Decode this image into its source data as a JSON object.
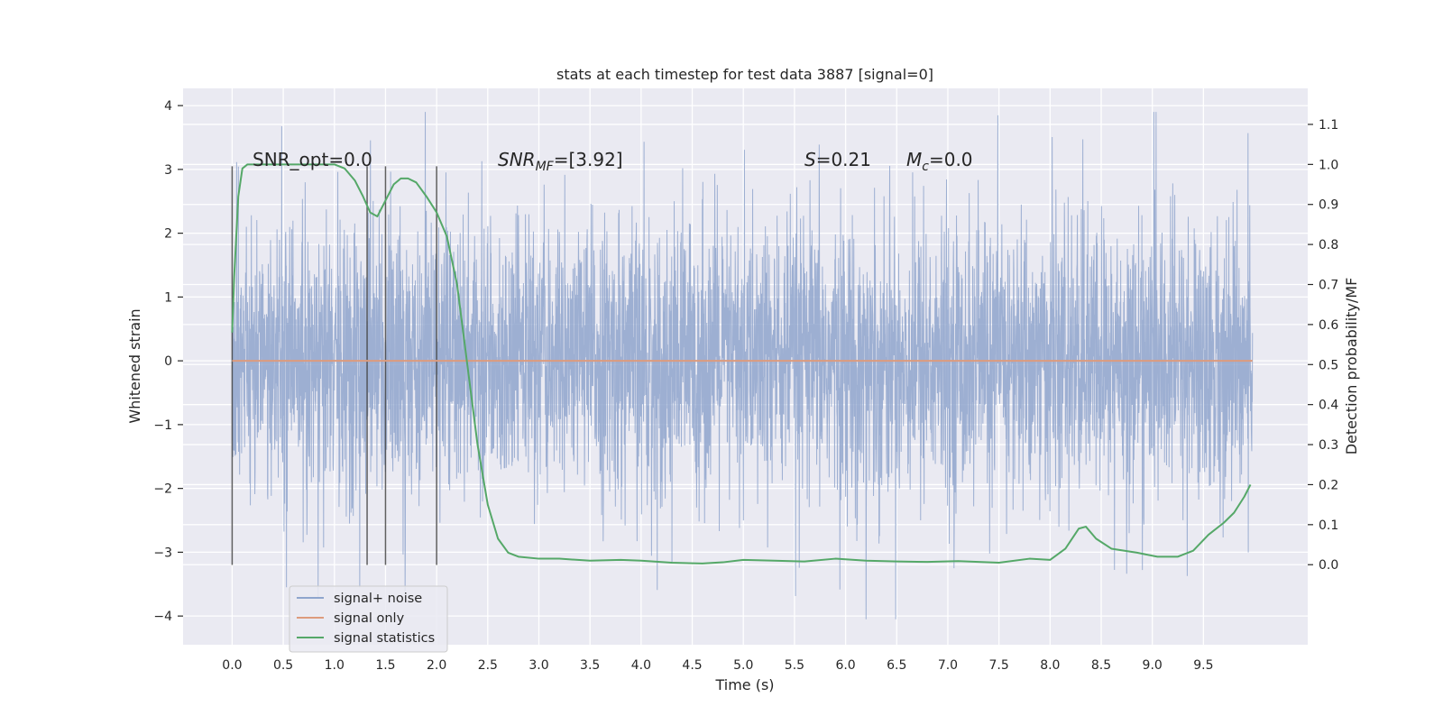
{
  "chart_data": {
    "type": "line",
    "title": "stats at each timestep for test data 3887 [signal=0]",
    "xlabel": "Time (s)",
    "ylabel_left": "Whitened strain",
    "ylabel_right": "Detection probability/MF",
    "xlim": [
      -0.48,
      10.52
    ],
    "ylim_left": [
      -4.45,
      4.27
    ],
    "ylim_right": [
      -0.2,
      1.19
    ],
    "x_ticks": [
      "0.0",
      "0.5",
      "1.0",
      "1.5",
      "2.0",
      "2.5",
      "3.0",
      "3.5",
      "4.0",
      "4.5",
      "5.0",
      "5.5",
      "6.0",
      "6.5",
      "7.0",
      "7.5",
      "8.0",
      "8.5",
      "9.0",
      "9.5"
    ],
    "y_ticks_left": [
      "−4",
      "−3",
      "−2",
      "−1",
      "0",
      "1",
      "2",
      "3",
      "4"
    ],
    "y_ticks_right": [
      "0.0",
      "0.1",
      "0.2",
      "0.3",
      "0.4",
      "0.5",
      "0.6",
      "0.7",
      "0.8",
      "0.9",
      "1.0",
      "1.1"
    ],
    "grid": true,
    "legend_position": "lower-left",
    "annotations": {
      "snr_opt": "SNR_opt=0.0",
      "snr_mf_main": "SNR",
      "snr_mf_sub": "MF",
      "snr_mf_value": "=[3.92]",
      "s_symbol": "S",
      "s_value": "=0.21",
      "mc_symbol": "M",
      "mc_sub": "c",
      "mc_value": "=0.0"
    },
    "vertical_markers_x": [
      0.0,
      1.32,
      1.5,
      2.0
    ],
    "series": [
      {
        "name": "signal+ noise",
        "axis": "left",
        "color": "#8fa5cd",
        "kind": "noise",
        "t_range": [
          0.0,
          9.98
        ],
        "typical_amplitude": 1.2,
        "peak_positive_approx": 3.9,
        "peak_negative_approx": -4.05
      },
      {
        "name": "signal only",
        "axis": "left",
        "color": "#dd9b7d",
        "x": [
          0.0,
          9.98
        ],
        "y": [
          0.0,
          0.0
        ]
      },
      {
        "name": "signal statistics",
        "axis": "right",
        "color": "#55a868",
        "x": [
          0.0,
          0.02,
          0.06,
          0.1,
          0.15,
          0.2,
          0.3,
          0.5,
          0.8,
          1.0,
          1.1,
          1.2,
          1.28,
          1.35,
          1.42,
          1.5,
          1.58,
          1.65,
          1.72,
          1.8,
          1.9,
          2.0,
          2.1,
          2.2,
          2.3,
          2.4,
          2.5,
          2.6,
          2.7,
          2.8,
          3.0,
          3.2,
          3.5,
          3.8,
          4.0,
          4.3,
          4.6,
          4.8,
          5.0,
          5.3,
          5.6,
          5.9,
          6.2,
          6.5,
          6.8,
          7.1,
          7.5,
          7.8,
          8.0,
          8.15,
          8.28,
          8.35,
          8.45,
          8.6,
          8.85,
          9.05,
          9.25,
          9.4,
          9.55,
          9.7,
          9.8,
          9.9,
          9.96
        ],
        "y": [
          0.58,
          0.72,
          0.92,
          0.99,
          1.0,
          1.0,
          1.0,
          1.0,
          1.0,
          1.0,
          0.99,
          0.96,
          0.92,
          0.88,
          0.87,
          0.91,
          0.95,
          0.965,
          0.965,
          0.955,
          0.92,
          0.88,
          0.82,
          0.7,
          0.5,
          0.3,
          0.15,
          0.065,
          0.03,
          0.02,
          0.015,
          0.015,
          0.01,
          0.012,
          0.01,
          0.005,
          0.003,
          0.006,
          0.012,
          0.01,
          0.008,
          0.015,
          0.01,
          0.008,
          0.007,
          0.009,
          0.005,
          0.015,
          0.012,
          0.04,
          0.09,
          0.095,
          0.065,
          0.04,
          0.03,
          0.02,
          0.02,
          0.035,
          0.075,
          0.105,
          0.13,
          0.17,
          0.2
        ]
      }
    ]
  }
}
